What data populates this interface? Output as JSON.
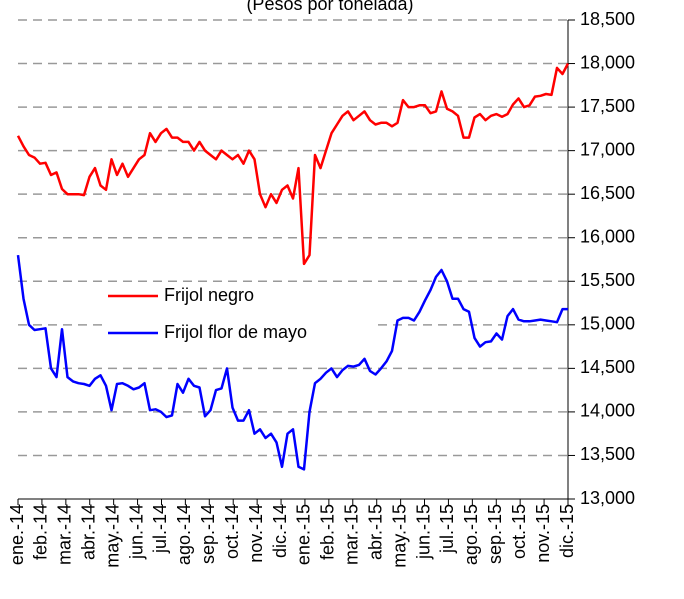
{
  "chart_data": {
    "type": "line",
    "subtitle": "(Pesos por tonelada)",
    "xlim": [
      0,
      100
    ],
    "xticks": [
      {
        "value": 0,
        "label": "ene.-14"
      },
      {
        "value": 4.35,
        "label": "feb.-14"
      },
      {
        "value": 8.7,
        "label": "mar.-14"
      },
      {
        "value": 13.04,
        "label": "abr.-14"
      },
      {
        "value": 17.39,
        "label": "may.-14"
      },
      {
        "value": 21.74,
        "label": "jun.-14"
      },
      {
        "value": 26.09,
        "label": "jul.-14"
      },
      {
        "value": 30.43,
        "label": "ago.-14"
      },
      {
        "value": 34.78,
        "label": "sep.-14"
      },
      {
        "value": 39.13,
        "label": "oct.-14"
      },
      {
        "value": 43.48,
        "label": "nov.-14"
      },
      {
        "value": 47.83,
        "label": "dic.-14"
      },
      {
        "value": 52.17,
        "label": "ene.-15"
      },
      {
        "value": 56.52,
        "label": "feb.-15"
      },
      {
        "value": 60.87,
        "label": "mar.-15"
      },
      {
        "value": 65.22,
        "label": "abr.-15"
      },
      {
        "value": 69.57,
        "label": "may.-15"
      },
      {
        "value": 73.91,
        "label": "jun.-15"
      },
      {
        "value": 78.26,
        "label": "jul.-15"
      },
      {
        "value": 82.61,
        "label": "ago.-15"
      },
      {
        "value": 86.96,
        "label": "sep.-15"
      },
      {
        "value": 91.3,
        "label": "oct.-15"
      },
      {
        "value": 95.65,
        "label": "nov.-15"
      },
      {
        "value": 100,
        "label": "dic.-15"
      }
    ],
    "ylim": [
      13000,
      18500
    ],
    "yticks": [
      {
        "value": 13000,
        "label": "13,000"
      },
      {
        "value": 13500,
        "label": "13,500"
      },
      {
        "value": 14000,
        "label": "14,000"
      },
      {
        "value": 14500,
        "label": "14,500"
      },
      {
        "value": 15000,
        "label": "15,000"
      },
      {
        "value": 15500,
        "label": "15,500"
      },
      {
        "value": 16000,
        "label": "16,000"
      },
      {
        "value": 16500,
        "label": "16,500"
      },
      {
        "value": 17000,
        "label": "17,000"
      },
      {
        "value": 17500,
        "label": "17,500"
      },
      {
        "value": 18000,
        "label": "18,000"
      },
      {
        "value": 18500,
        "label": "18,500"
      }
    ],
    "grid": true,
    "legend": "left",
    "series": [
      {
        "name": "Frijol negro",
        "color": "#ff0000",
        "values": [
          17170,
          17050,
          16950,
          16920,
          16850,
          16860,
          16720,
          16750,
          16560,
          16500,
          16500,
          16500,
          16490,
          16700,
          16800,
          16600,
          16550,
          16900,
          16720,
          16850,
          16700,
          16800,
          16900,
          16950,
          17200,
          17100,
          17200,
          17250,
          17150,
          17150,
          17100,
          17100,
          17000,
          17100,
          17000,
          16950,
          16900,
          17000,
          16950,
          16900,
          16950,
          16850,
          17000,
          16900,
          16500,
          16350,
          16500,
          16400,
          16550,
          16600,
          16450,
          16800,
          15700,
          15800,
          16950,
          16800,
          17000,
          17200,
          17300,
          17400,
          17450,
          17350,
          17400,
          17450,
          17350,
          17300,
          17320,
          17320,
          17280,
          17320,
          17580,
          17500,
          17500,
          17520,
          17520,
          17430,
          17450,
          17680,
          17480,
          17450,
          17400,
          17150,
          17150,
          17380,
          17420,
          17350,
          17400,
          17420,
          17390,
          17420,
          17530,
          17600,
          17500,
          17520,
          17620,
          17630,
          17650,
          17640,
          17950,
          17880,
          18000
        ]
      },
      {
        "name": "Frijol flor de mayo",
        "color": "#0000ff",
        "values": [
          15800,
          15300,
          15000,
          14940,
          14950,
          14960,
          14500,
          14400,
          14950,
          14400,
          14350,
          14330,
          14320,
          14300,
          14380,
          14420,
          14300,
          14020,
          14320,
          14330,
          14300,
          14260,
          14280,
          14330,
          14020,
          14030,
          14000,
          13940,
          13960,
          14320,
          14220,
          14380,
          14300,
          14280,
          13950,
          14020,
          14250,
          14270,
          14500,
          14050,
          13900,
          13900,
          14020,
          13750,
          13800,
          13700,
          13750,
          13650,
          13370,
          13750,
          13800,
          13370,
          13340,
          14000,
          14330,
          14380,
          14450,
          14500,
          14400,
          14480,
          14530,
          14520,
          14540,
          14610,
          14470,
          14430,
          14500,
          14580,
          14700,
          15050,
          15080,
          15080,
          15050,
          15150,
          15280,
          15400,
          15550,
          15630,
          15500,
          15300,
          15300,
          15180,
          15150,
          14850,
          14750,
          14800,
          14810,
          14900,
          14830,
          15100,
          15180,
          15060,
          15040,
          15040,
          15050,
          15060,
          15050,
          15040,
          15030,
          15180,
          15180
        ]
      }
    ]
  }
}
